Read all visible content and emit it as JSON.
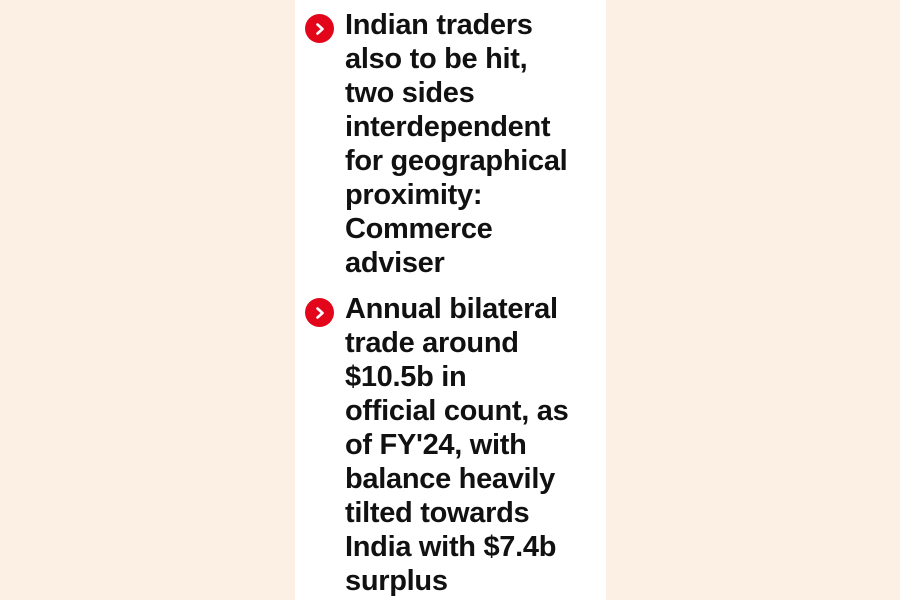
{
  "colors": {
    "page_background": "#fcefe3",
    "panel_background": "#ffffff",
    "bullet_accent": "#e3061b",
    "text": "#111111"
  },
  "bullets": [
    {
      "icon": "chevron-right-icon",
      "text": "Indian traders\nalso to be hit,\ntwo sides\ninterdependent\nfor geographical\nproximity:\nCommerce\nadviser"
    },
    {
      "icon": "chevron-right-icon",
      "text": "Annual bilateral\ntrade around\n$10.5b in\nofficial count, as\nof FY'24, with\nbalance heavily\ntilted towards\nIndia with $7.4b\nsurplus"
    }
  ]
}
